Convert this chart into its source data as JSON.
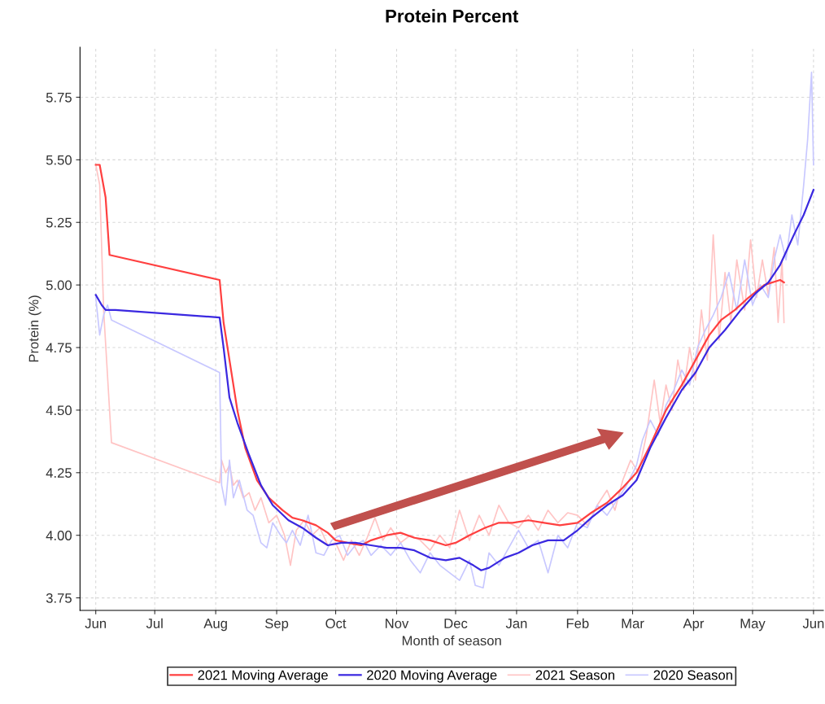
{
  "chart_data": {
    "type": "line",
    "title": "Protein Percent",
    "xlabel": "Month of season",
    "ylabel": "Protein (%)",
    "xlim": [
      "2020-05-24",
      "2021-06-06"
    ],
    "ylim": [
      3.7,
      5.95
    ],
    "xticks": [
      {
        "value": "2020-06-01",
        "label": "Jun"
      },
      {
        "value": "2020-07-01",
        "label": "Jul"
      },
      {
        "value": "2020-08-01",
        "label": "Aug"
      },
      {
        "value": "2020-09-01",
        "label": "Sep"
      },
      {
        "value": "2020-10-01",
        "label": "Oct"
      },
      {
        "value": "2020-11-01",
        "label": "Nov"
      },
      {
        "value": "2020-12-01",
        "label": "Dec"
      },
      {
        "value": "2021-01-01",
        "label": "Jan"
      },
      {
        "value": "2021-02-01",
        "label": "Feb"
      },
      {
        "value": "2021-03-01",
        "label": "Mar"
      },
      {
        "value": "2021-04-01",
        "label": "Apr"
      },
      {
        "value": "2021-05-01",
        "label": "May"
      },
      {
        "value": "2021-06-01",
        "label": "Jun"
      }
    ],
    "yticks": [
      {
        "value": 3.75,
        "label": "3.75"
      },
      {
        "value": 4.0,
        "label": "4.00"
      },
      {
        "value": 4.25,
        "label": "4.25"
      },
      {
        "value": 4.5,
        "label": "4.50"
      },
      {
        "value": 4.75,
        "label": "4.75"
      },
      {
        "value": 5.0,
        "label": "5.00"
      },
      {
        "value": 5.25,
        "label": "5.25"
      },
      {
        "value": 5.5,
        "label": "5.50"
      },
      {
        "value": 5.75,
        "label": "5.75"
      }
    ],
    "grid": true,
    "legend": "bottom",
    "line_style": "solid",
    "marker": "none",
    "series": [
      {
        "name": "2021 Season",
        "color": "#ffc4c4",
        "x": [
          "2020-06-01",
          "2020-06-03",
          "2020-06-05",
          "2020-06-09",
          "2020-08-03",
          "2020-08-04",
          "2020-08-06",
          "2020-08-08",
          "2020-08-10",
          "2020-08-12",
          "2020-08-15",
          "2020-08-18",
          "2020-08-21",
          "2020-08-24",
          "2020-08-28",
          "2020-09-01",
          "2020-09-05",
          "2020-09-08",
          "2020-09-11",
          "2020-09-15",
          "2020-09-19",
          "2020-09-23",
          "2020-09-27",
          "2020-10-01",
          "2020-10-05",
          "2020-10-09",
          "2020-10-13",
          "2020-10-17",
          "2020-10-21",
          "2020-10-25",
          "2020-10-29",
          "2020-11-03",
          "2020-11-08",
          "2020-11-13",
          "2020-11-18",
          "2020-11-23",
          "2020-11-28",
          "2020-12-03",
          "2020-12-08",
          "2020-12-13",
          "2020-12-18",
          "2020-12-23",
          "2020-12-28",
          "2021-01-02",
          "2021-01-07",
          "2021-01-12",
          "2021-01-17",
          "2021-01-22",
          "2021-01-27",
          "2021-02-01",
          "2021-02-06",
          "2021-02-11",
          "2021-02-16",
          "2021-02-20",
          "2021-02-24",
          "2021-02-28",
          "2021-03-04",
          "2021-03-08",
          "2021-03-12",
          "2021-03-15",
          "2021-03-18",
          "2021-03-21",
          "2021-03-24",
          "2021-03-27",
          "2021-03-30",
          "2021-04-02",
          "2021-04-05",
          "2021-04-08",
          "2021-04-11",
          "2021-04-14",
          "2021-04-17",
          "2021-04-20",
          "2021-04-23",
          "2021-04-27",
          "2021-04-30",
          "2021-05-03",
          "2021-05-06",
          "2021-05-09",
          "2021-05-12",
          "2021-05-14",
          "2021-05-16",
          "2021-05-17"
        ],
        "values": [
          5.48,
          5.4,
          4.9,
          4.37,
          4.21,
          4.3,
          4.25,
          4.28,
          4.2,
          4.22,
          4.15,
          4.17,
          4.1,
          4.15,
          4.05,
          4.08,
          4.0,
          3.88,
          4.02,
          4.06,
          4.0,
          4.03,
          3.96,
          3.97,
          3.9,
          3.98,
          3.92,
          3.99,
          4.07,
          3.98,
          4.03,
          3.97,
          4.0,
          3.98,
          3.94,
          4.0,
          3.95,
          4.1,
          3.98,
          4.08,
          4.0,
          4.12,
          4.05,
          4.03,
          4.08,
          4.02,
          4.1,
          4.05,
          4.09,
          4.08,
          4.04,
          4.12,
          4.18,
          4.1,
          4.22,
          4.3,
          4.25,
          4.4,
          4.62,
          4.45,
          4.6,
          4.5,
          4.7,
          4.58,
          4.75,
          4.62,
          4.9,
          4.7,
          5.2,
          4.78,
          5.05,
          4.85,
          5.1,
          4.9,
          5.18,
          4.95,
          5.1,
          4.96,
          5.15,
          4.85,
          5.1,
          4.85
        ]
      },
      {
        "name": "2020 Season",
        "color": "#c8c8ff",
        "x": [
          "2020-06-01",
          "2020-06-03",
          "2020-06-05",
          "2020-06-07",
          "2020-06-09",
          "2020-08-03",
          "2020-08-04",
          "2020-08-06",
          "2020-08-08",
          "2020-08-10",
          "2020-08-13",
          "2020-08-17",
          "2020-08-20",
          "2020-08-24",
          "2020-08-27",
          "2020-08-30",
          "2020-09-03",
          "2020-09-06",
          "2020-09-09",
          "2020-09-13",
          "2020-09-17",
          "2020-09-21",
          "2020-09-25",
          "2020-09-29",
          "2020-10-03",
          "2020-10-07",
          "2020-10-11",
          "2020-10-15",
          "2020-10-19",
          "2020-10-24",
          "2020-10-29",
          "2020-11-03",
          "2020-11-08",
          "2020-11-13",
          "2020-11-18",
          "2020-11-23",
          "2020-11-28",
          "2020-12-03",
          "2020-12-08",
          "2020-12-11",
          "2020-12-15",
          "2020-12-18",
          "2020-12-23",
          "2020-12-28",
          "2021-01-02",
          "2021-01-07",
          "2021-01-12",
          "2021-01-17",
          "2021-01-22",
          "2021-01-27",
          "2021-02-01",
          "2021-02-06",
          "2021-02-11",
          "2021-02-16",
          "2021-02-21",
          "2021-02-26",
          "2021-03-03",
          "2021-03-06",
          "2021-03-10",
          "2021-03-14",
          "2021-03-18",
          "2021-03-22",
          "2021-03-26",
          "2021-03-30",
          "2021-04-03",
          "2021-04-07",
          "2021-04-11",
          "2021-04-15",
          "2021-04-19",
          "2021-04-23",
          "2021-04-27",
          "2021-05-01",
          "2021-05-05",
          "2021-05-09",
          "2021-05-12",
          "2021-05-15",
          "2021-05-18",
          "2021-05-21",
          "2021-05-24",
          "2021-05-27",
          "2021-05-29",
          "2021-05-31",
          "2021-06-01"
        ],
        "values": [
          4.95,
          4.8,
          4.88,
          4.92,
          4.86,
          4.65,
          4.2,
          4.12,
          4.3,
          4.15,
          4.22,
          4.1,
          4.08,
          3.97,
          3.95,
          4.05,
          4.0,
          3.97,
          4.02,
          3.96,
          4.08,
          3.93,
          3.92,
          3.98,
          4.0,
          3.92,
          3.96,
          3.98,
          3.92,
          3.96,
          3.92,
          3.97,
          3.9,
          3.85,
          3.93,
          3.88,
          3.85,
          3.82,
          3.9,
          3.8,
          3.79,
          3.93,
          3.88,
          3.95,
          4.02,
          3.95,
          3.98,
          3.85,
          4.0,
          3.95,
          4.05,
          4.03,
          4.12,
          4.08,
          4.14,
          4.2,
          4.28,
          4.38,
          4.46,
          4.4,
          4.52,
          4.58,
          4.66,
          4.6,
          4.75,
          4.82,
          4.88,
          4.95,
          5.05,
          4.9,
          5.1,
          4.92,
          5.0,
          4.95,
          5.1,
          5.2,
          5.1,
          5.28,
          5.16,
          5.4,
          5.58,
          5.85,
          5.48
        ]
      },
      {
        "name": "2021 Moving Average",
        "color": "#ff4040",
        "x": [
          "2020-06-01",
          "2020-06-03",
          "2020-06-06",
          "2020-06-08",
          "2020-08-03",
          "2020-08-05",
          "2020-08-08",
          "2020-08-12",
          "2020-08-16",
          "2020-08-22",
          "2020-08-28",
          "2020-09-04",
          "2020-09-09",
          "2020-09-14",
          "2020-09-21",
          "2020-09-27",
          "2020-10-01",
          "2020-10-07",
          "2020-10-14",
          "2020-10-19",
          "2020-10-27",
          "2020-11-03",
          "2020-11-10",
          "2020-11-18",
          "2020-11-26",
          "2020-12-01",
          "2020-12-08",
          "2020-12-16",
          "2020-12-23",
          "2020-12-30",
          "2021-01-07",
          "2021-01-15",
          "2021-01-23",
          "2021-02-01",
          "2021-02-08",
          "2021-02-16",
          "2021-02-24",
          "2021-03-03",
          "2021-03-10",
          "2021-03-18",
          "2021-03-26",
          "2021-04-02",
          "2021-04-09",
          "2021-04-15",
          "2021-04-22",
          "2021-04-29",
          "2021-05-07",
          "2021-05-15",
          "2021-05-17"
        ],
        "values": [
          5.48,
          5.48,
          5.35,
          5.12,
          5.02,
          4.85,
          4.7,
          4.5,
          4.35,
          4.22,
          4.15,
          4.1,
          4.07,
          4.06,
          4.04,
          4.01,
          3.98,
          3.97,
          3.96,
          3.98,
          4.0,
          4.01,
          3.99,
          3.98,
          3.96,
          3.97,
          4.0,
          4.03,
          4.05,
          4.05,
          4.06,
          4.05,
          4.04,
          4.05,
          4.09,
          4.13,
          4.19,
          4.25,
          4.36,
          4.5,
          4.6,
          4.7,
          4.8,
          4.86,
          4.9,
          4.95,
          5.0,
          5.02,
          5.01
        ]
      },
      {
        "name": "2020 Moving Average",
        "color": "#3a28e0",
        "x": [
          "2020-06-01",
          "2020-06-04",
          "2020-06-06",
          "2020-06-11",
          "2020-08-03",
          "2020-08-05",
          "2020-08-08",
          "2020-08-12",
          "2020-08-18",
          "2020-08-24",
          "2020-08-30",
          "2020-09-07",
          "2020-09-14",
          "2020-09-21",
          "2020-09-27",
          "2020-10-04",
          "2020-10-11",
          "2020-10-19",
          "2020-10-27",
          "2020-11-03",
          "2020-11-10",
          "2020-11-18",
          "2020-11-26",
          "2020-12-03",
          "2020-12-10",
          "2020-12-14",
          "2020-12-18",
          "2020-12-26",
          "2021-01-02",
          "2021-01-09",
          "2021-01-17",
          "2021-01-25",
          "2021-02-01",
          "2021-02-08",
          "2021-02-16",
          "2021-02-24",
          "2021-03-03",
          "2021-03-10",
          "2021-03-18",
          "2021-03-26",
          "2021-04-02",
          "2021-04-09",
          "2021-04-17",
          "2021-04-25",
          "2021-05-03",
          "2021-05-09",
          "2021-05-15",
          "2021-05-22",
          "2021-05-27",
          "2021-06-01"
        ],
        "values": [
          4.96,
          4.92,
          4.9,
          4.9,
          4.87,
          4.75,
          4.55,
          4.45,
          4.32,
          4.2,
          4.12,
          4.06,
          4.03,
          3.99,
          3.96,
          3.97,
          3.97,
          3.96,
          3.95,
          3.95,
          3.94,
          3.91,
          3.9,
          3.91,
          3.88,
          3.86,
          3.87,
          3.91,
          3.93,
          3.96,
          3.98,
          3.98,
          4.02,
          4.07,
          4.12,
          4.16,
          4.22,
          4.35,
          4.47,
          4.58,
          4.65,
          4.75,
          4.82,
          4.9,
          4.97,
          5.01,
          5.08,
          5.2,
          5.28,
          5.38
        ]
      }
    ]
  }
}
